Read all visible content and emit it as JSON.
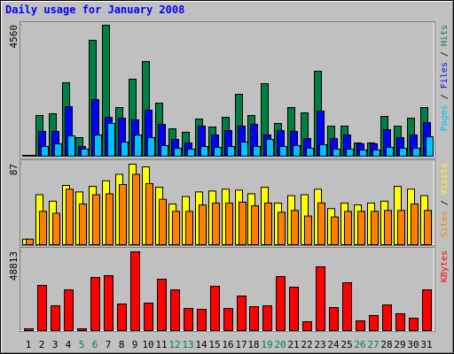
{
  "title": "Daily usage for January 2008",
  "legend_separator": " / ",
  "chart_data": [
    {
      "type": "bar",
      "ylim": [
        0,
        4560
      ],
      "yticks": [
        4560
      ],
      "series": [
        {
          "name": "Pages",
          "color": "#00c0ff",
          "values": [
            5,
            339,
            431,
            708,
            246,
            739,
            1140,
            493,
            739,
            647,
            370,
            277,
            246,
            339,
            308,
            339,
            493,
            339,
            585,
            339,
            370,
            277,
            400,
            246,
            246,
            216,
            216,
            308,
            277,
            277,
            678
          ]
        },
        {
          "name": "Files",
          "color": "#0000ff",
          "values": [
            10,
            862,
            862,
            1725,
            339,
            1971,
            1355,
            1324,
            1263,
            1602,
            1109,
            585,
            462,
            1047,
            739,
            893,
            1047,
            1109,
            739,
            893,
            862,
            616,
            1571,
            616,
            739,
            431,
            431,
            924,
            647,
            739,
            1170
          ]
        },
        {
          "name": "Hits",
          "color": "#008040",
          "values": [
            30,
            1417,
            1479,
            2557,
            647,
            4035,
            4560,
            1694,
            2680,
            3296,
            1848,
            955,
            832,
            1294,
            1017,
            1355,
            2156,
            1417,
            2526,
            1140,
            1694,
            1509,
            2957,
            1047,
            1047,
            462,
            462,
            1386,
            1047,
            1324,
            1694
          ]
        }
      ]
    },
    {
      "type": "bar",
      "ylim": [
        0,
        87
      ],
      "yticks": [
        87
      ],
      "series": [
        {
          "name": "Sites",
          "color": "#ff8000",
          "values": [
            6,
            36,
            34,
            60,
            44,
            54,
            55,
            65,
            76,
            66,
            49,
            36,
            36,
            43,
            45,
            45,
            46,
            42,
            45,
            35,
            37,
            31,
            45,
            30,
            36,
            36,
            36,
            37,
            37,
            44,
            37
          ]
        },
        {
          "name": "Visits",
          "color": "#ffff00",
          "values": [
            6,
            54,
            47,
            64,
            57,
            63,
            69,
            76,
            87,
            84,
            62,
            44,
            52,
            57,
            58,
            60,
            59,
            55,
            62,
            45,
            53,
            54,
            60,
            39,
            45,
            43,
            45,
            47,
            63,
            60,
            53
          ]
        }
      ]
    },
    {
      "type": "bar",
      "ylim": [
        0,
        48813
      ],
      "yticks": [
        48813
      ],
      "categories": [
        "1",
        "2",
        "3",
        "4",
        "5",
        "6",
        "7",
        "8",
        "9",
        "10",
        "11",
        "12",
        "13",
        "14",
        "15",
        "16",
        "17",
        "18",
        "19",
        "20",
        "21",
        "22",
        "23",
        "24",
        "25",
        "26",
        "27",
        "28",
        "29",
        "30",
        "31"
      ],
      "category_colors": [
        "#000000",
        "#000000",
        "#000000",
        "#000000",
        "#00805c",
        "#00805c",
        "#000000",
        "#000000",
        "#000000",
        "#000000",
        "#000000",
        "#00805c",
        "#00805c",
        "#000000",
        "#000000",
        "#000000",
        "#000000",
        "#000000",
        "#00805c",
        "#00805c",
        "#000000",
        "#000000",
        "#000000",
        "#000000",
        "#000000",
        "#00805c",
        "#00805c",
        "#000000",
        "#000000",
        "#000000",
        "#000000"
      ],
      "series": [
        {
          "name": "KBytes",
          "color": "#ff0000",
          "values": [
            1097,
            27973,
            15358,
            25231,
            1097,
            32910,
            34007,
            16455,
            48813,
            17004,
            31813,
            25231,
            13712,
            13164,
            27425,
            13712,
            21392,
            14810,
            15358,
            33459,
            26877,
            5485,
            39492,
            14261,
            29619,
            6034,
            9325,
            15907,
            10422,
            7679,
            25231
          ]
        }
      ]
    }
  ]
}
